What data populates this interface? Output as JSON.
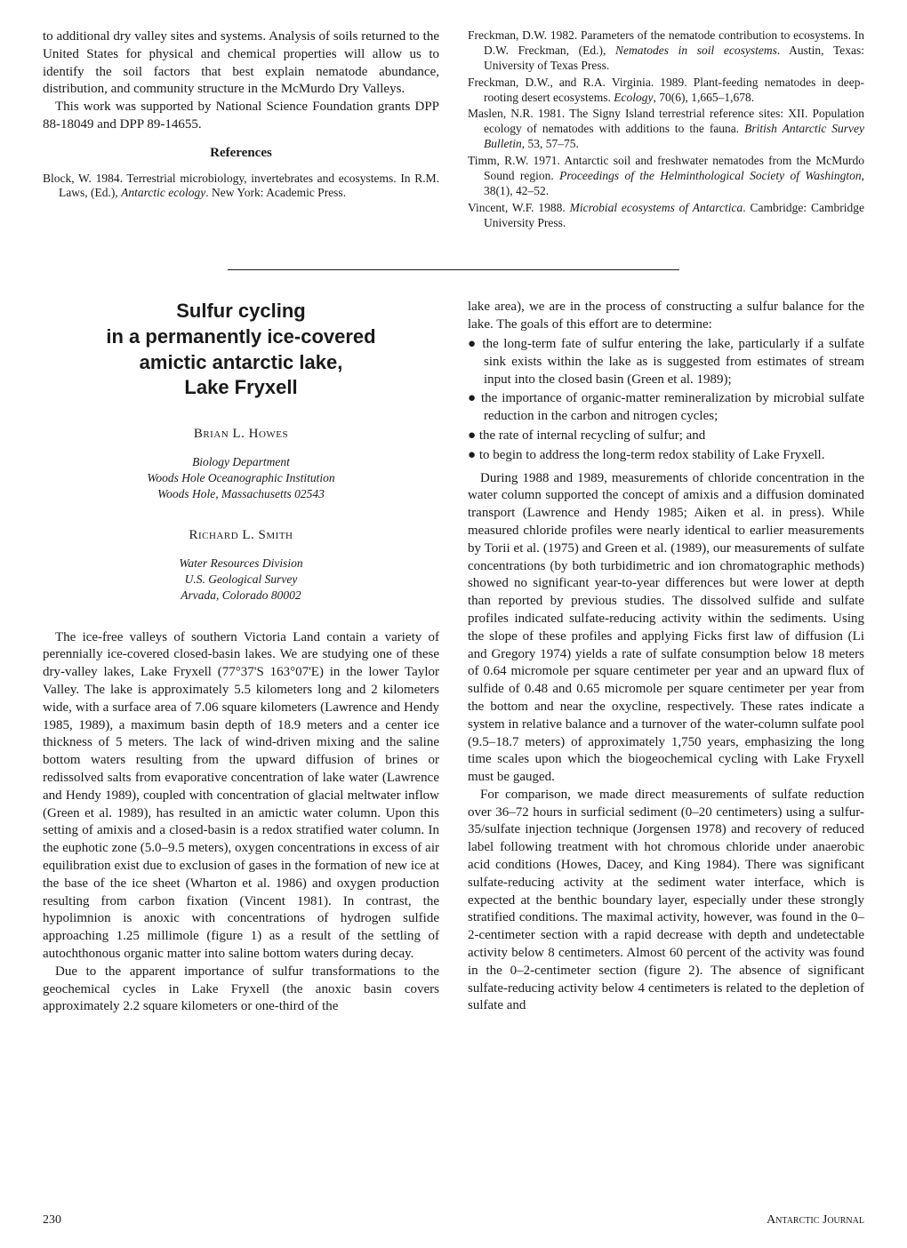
{
  "top": {
    "leftParagraph1": "to additional dry valley sites and systems. Analysis of soils returned to the United States for physical and chemical properties will allow us to identify the soil factors that best explain nematode abundance, distribution, and community structure in the McMurdo Dry Valleys.",
    "leftParagraph2": "This work was supported by National Science Foundation grants DPP 88-18049 and DPP 89-14655.",
    "referencesHeading": "References",
    "refs": [
      "Block, W. 1984. Terrestrial microbiology, invertebrates and ecosystems. In R.M. Laws, (Ed.), <em>Antarctic ecology</em>. New York: Academic Press.",
      "Freckman, D.W. 1982. Parameters of the nematode contribution to ecosystems. In D.W. Freckman, (Ed.), <em>Nematodes in soil ecosystems</em>. Austin, Texas: University of Texas Press.",
      "Freckman, D.W., and R.A. Virginia. 1989. Plant-feeding nematodes in deep-rooting desert ecosystems. <em>Ecology</em>, 70(6), 1,665–1,678.",
      "Maslen, N.R. 1981. The Signy Island terrestrial reference sites: XII. Population ecology of nematodes with additions to the fauna. <em>British Antarctic Survey Bulletin</em>, 53, 57–75.",
      "Timm, R.W. 1971. Antarctic soil and freshwater nematodes from the McMurdo Sound region. <em>Proceedings of the Helminthological Society of Washington</em>, 38(1), 42–52.",
      "Vincent, W.F. 1988. <em>Microbial ecosystems of Antarctica</em>. Cambridge: Cambridge University Press."
    ]
  },
  "article": {
    "title": "Sulfur cycling\nin a permanently ice-covered\namictic antarctic lake,\nLake Fryxell",
    "author1": "Brian L. Howes",
    "affiliation1": "Biology Department\nWoods Hole Oceanographic Institution\nWoods Hole, Massachusetts 02543",
    "author2": "Richard L. Smith",
    "affiliation2": "Water Resources Division\nU.S. Geological Survey\nArvada, Colorado 80002",
    "leftBody1": "The ice-free valleys of southern Victoria Land contain a variety of perennially ice-covered closed-basin lakes. We are studying one of these dry-valley lakes, Lake Fryxell (77°37'S 163°07'E) in the lower Taylor Valley. The lake is approximately 5.5 kilometers long and 2 kilometers wide, with a surface area of 7.06 square kilometers (Lawrence and Hendy 1985, 1989), a maximum basin depth of 18.9 meters and a center ice thickness of 5 meters. The lack of wind-driven mixing and the saline bottom waters resulting from the upward diffusion of brines or redissolved salts from evaporative concentration of lake water (Lawrence and Hendy 1989), coupled with concentration of glacial meltwater inflow (Green et al. 1989), has resulted in an amictic water column. Upon this setting of amixis and a closed-basin is a redox stratified water column. In the euphotic zone (5.0–9.5 meters), oxygen concentrations in excess of air equilibration exist due to exclusion of gases in the formation of new ice at the base of the ice sheet (Wharton et al. 1986) and oxygen production resulting from carbon fixation (Vincent 1981). In contrast, the hypolimnion is anoxic with concentrations of hydrogen sulfide approaching 1.25 millimole (figure 1) as a result of the settling of autochthonous organic matter into saline bottom waters during decay.",
    "leftBody2": "Due to the apparent importance of sulfur transformations to the geochemical cycles in Lake Fryxell (the anoxic basin covers approximately 2.2 square kilometers or one-third of the",
    "rightBody1": "lake area), we are in the process of constructing a sulfur balance for the lake. The goals of this effort are to determine:",
    "bullets": [
      "the long-term fate of sulfur entering the lake, particularly if a sulfate sink exists within the lake as is suggested from estimates of stream input into the closed basin (Green et al. 1989);",
      "the importance of organic-matter remineralization by microbial sulfate reduction in the carbon and nitrogen cycles;",
      "the rate of internal recycling of sulfur; and",
      "to begin to address the long-term redox stability of Lake Fryxell."
    ],
    "rightBody2": "During 1988 and 1989, measurements of chloride concentration in the water column supported the concept of amixis and a diffusion dominated transport (Lawrence and Hendy 1985; Aiken et al. in press). While measured chloride profiles were nearly identical to earlier measurements by Torii et al. (1975) and Green et al. (1989), our measurements of sulfate concentrations (by both turbidimetric and ion chromatographic methods) showed no significant year-to-year differences but were lower at depth than reported by previous studies. The dissolved sulfide and sulfate profiles indicated sulfate-reducing activity within the sediments. Using the slope of these profiles and applying Ficks first law of diffusion (Li and Gregory 1974) yields a rate of sulfate consumption below 18 meters of 0.64 micromole per square centimeter per year and an upward flux of sulfide of 0.48 and 0.65 micromole per square centimeter per year from the bottom and near the oxycline, respectively. These rates indicate a system in relative balance and a turnover of the water-column sulfate pool (9.5–18.7 meters) of approximately 1,750 years, emphasizing the long time scales upon which the biogeochemical cycling with Lake Fryxell must be gauged.",
    "rightBody3": "For comparison, we made direct measurements of sulfate reduction over 36–72 hours in surficial sediment (0–20 centimeters) using a sulfur-35/sulfate injection technique (Jorgensen 1978) and recovery of reduced label following treatment with hot chromous chloride under anaerobic acid conditions (Howes, Dacey, and King 1984). There was significant sulfate-reducing activity at the sediment water interface, which is expected at the benthic boundary layer, especially under these strongly stratified conditions. The maximal activity, however, was found in the 0–2-centimeter section with a rapid decrease with depth and undetectable activity below 8 centimeters. Almost 60 percent of the activity was found in the 0–2-centimeter section (figure 2). The absence of significant sulfate-reducing activity below 4 centimeters is related to the depletion of sulfate and"
  },
  "footer": {
    "pageNumber": "230",
    "journal": "Antarctic Journal"
  }
}
